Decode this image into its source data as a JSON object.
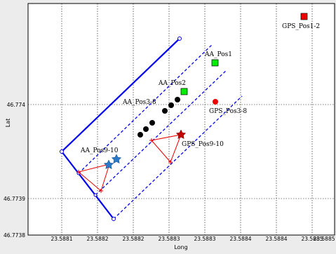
{
  "chart_data": {
    "type": "scatter",
    "xlabel": "Long",
    "ylabel": "Lat",
    "x_ticks": [
      "23.5881",
      "23.5882",
      "23.5882",
      "23.5883",
      "23.5883",
      "23.5884",
      "23.5884",
      "23.5885",
      "23.5885"
    ],
    "y_ticks": [
      "46.774",
      "46.7739",
      "46.7738"
    ],
    "grid": true,
    "annotations": [
      "GPS_Pos1-2",
      "AA_Pos1",
      "AA_Pos2",
      "AA_Pos3-8",
      "GPS_Pos3-8",
      "GPS_Pos9-10",
      "AA_Pos9-10"
    ],
    "colors": {
      "grid": "#000000",
      "region_outline": "#0000ee",
      "gps_square": "#ee0000",
      "aa_square": "#00ee00",
      "aa_dots": "#000000",
      "gps_dot": "#ee0000",
      "gps_star": "#c00000",
      "aa_stars": "#2a78c8",
      "triangles": "#ee0000"
    }
  }
}
